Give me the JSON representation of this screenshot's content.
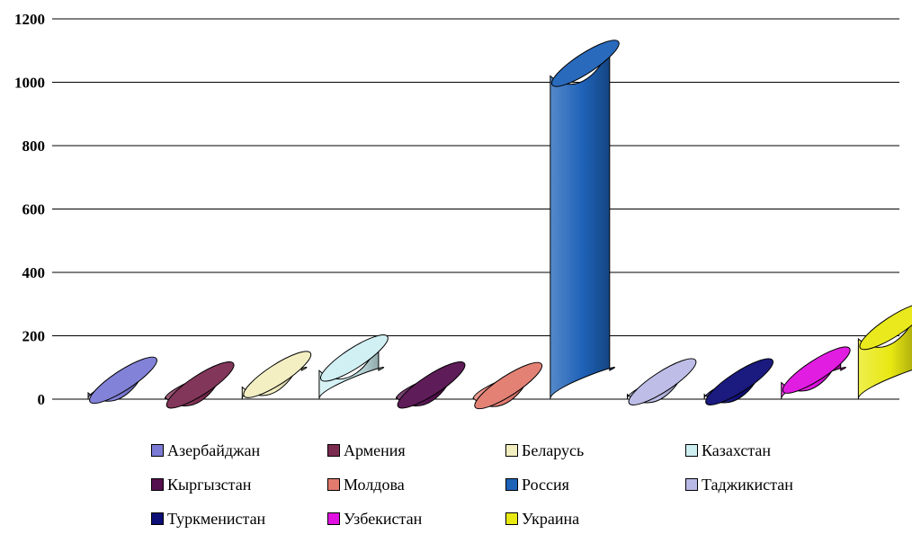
{
  "chart_data": {
    "type": "bar",
    "title": "",
    "xlabel": "",
    "ylabel": "",
    "ylim": [
      0,
      1200
    ],
    "yticks": [
      "0",
      "200",
      "400",
      "600",
      "800",
      "1000",
      "1200"
    ],
    "grid": true,
    "legend_placement": "bottom",
    "series": [
      {
        "name": "Азербайджан",
        "value": 20,
        "color": "#7B7BD6"
      },
      {
        "name": "Армения",
        "value": 5,
        "color": "#7B2B50"
      },
      {
        "name": "Беларусь",
        "value": 38,
        "color": "#F2EEC0"
      },
      {
        "name": "Казахстан",
        "value": 90,
        "color": "#CDEFF2"
      },
      {
        "name": "Кыргызстан",
        "value": 5,
        "color": "#55104F"
      },
      {
        "name": "Молдова",
        "value": 3,
        "color": "#E27A6E"
      },
      {
        "name": "Россия",
        "value": 1020,
        "color": "#1E62B8"
      },
      {
        "name": "Таджикистан",
        "value": 15,
        "color": "#B9B9E6"
      },
      {
        "name": "Туркменистан",
        "value": 15,
        "color": "#0E0E78"
      },
      {
        "name": "Узбекистан",
        "value": 52,
        "color": "#E011E0"
      },
      {
        "name": "Украина",
        "value": 190,
        "color": "#E8E812"
      }
    ]
  }
}
